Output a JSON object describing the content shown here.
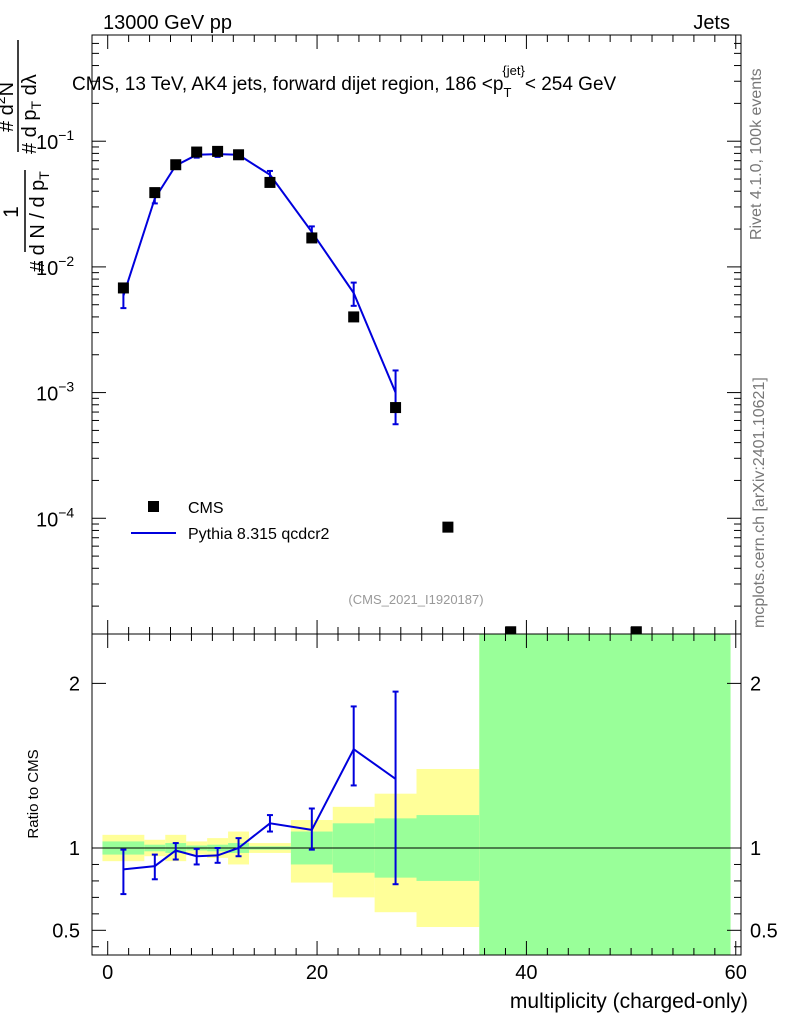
{
  "header": {
    "energy_label": "13000 GeV pp",
    "category_label": "Jets"
  },
  "side_labels": {
    "rivet": "Rivet 4.1.0,  100k events",
    "mcplots": "mcplots.cern.ch [arXiv:2401.10621]"
  },
  "chart_data": [
    {
      "type": "scatter",
      "panel": "main",
      "title": {
        "prefix": "CMS, 13 TeV, AK4 jets, forward dijet region, 186 <p",
        "sub": "T",
        "sup": "{jet}",
        "suffix": "< 254 GeV"
      },
      "ylabel": {
        "numerator": "1",
        "denominator": "# d N / d p",
        "denominator_sub": "T",
        "numerator2": "# d",
        "numerator2_sup": "2",
        "numerator2_tail": "N",
        "denominator2": "# d p",
        "denominator2_sub": "T",
        "denominator2_tail": " dλ"
      },
      "yscale": "log",
      "ylim": [
        1.2e-05,
        0.7
      ],
      "xlim": [
        -1.5,
        60.5
      ],
      "ytick_labels": [
        {
          "value": 0.1,
          "base": "10",
          "exp": "−1"
        },
        {
          "value": 0.01,
          "base": "10",
          "exp": "−2"
        },
        {
          "value": 0.001,
          "base": "10",
          "exp": "−3"
        },
        {
          "value": 0.0001,
          "base": "10",
          "exp": "−4"
        }
      ],
      "analysis_tag": "(CMS_2021_I1920187)",
      "legend": [
        {
          "name": "CMS",
          "marker": "square",
          "color": "#000000"
        },
        {
          "name": "Pythia 8.315 qcdcr2",
          "marker": "line",
          "color": "#0000dd"
        }
      ],
      "series": [
        {
          "name": "CMS",
          "x": [
            1.5,
            4.5,
            6.5,
            8.5,
            10.5,
            12.5,
            15.5,
            19.5,
            23.5,
            27.5,
            32.5,
            38.5,
            50.5
          ],
          "y": [
            0.0068,
            0.039,
            0.065,
            0.082,
            0.083,
            0.078,
            0.047,
            0.017,
            0.004,
            0.00076,
            8.5e-05,
            1.25e-05,
            1.25e-05
          ]
        },
        {
          "name": "Pythia 8.315 qcdcr2",
          "x": [
            1.5,
            4.5,
            6.5,
            8.5,
            10.5,
            12.5,
            15.5,
            19.5,
            23.5,
            27.5
          ],
          "y": [
            0.0059,
            0.035,
            0.064,
            0.078,
            0.079,
            0.078,
            0.054,
            0.019,
            0.0062,
            0.001
          ],
          "yerr_low": [
            0.0047,
            0.032,
            0.062,
            0.074,
            0.075,
            0.075,
            0.051,
            0.017,
            0.0049,
            0.00056
          ],
          "yerr_high": [
            0.0071,
            0.038,
            0.066,
            0.082,
            0.083,
            0.081,
            0.058,
            0.021,
            0.0075,
            0.0015
          ]
        }
      ]
    },
    {
      "type": "line",
      "panel": "ratio",
      "ylabel": "Ratio to CMS",
      "xlabel": "multiplicity (charged-only)",
      "ylim": [
        0.35,
        2.3
      ],
      "xlim": [
        -1.5,
        60.5
      ],
      "x_tick_labels": [
        {
          "value": 0,
          "label": "0"
        },
        {
          "value": 20,
          "label": "20"
        },
        {
          "value": 40,
          "label": "40"
        },
        {
          "value": 60,
          "label": "60"
        }
      ],
      "y_tick_labels": [
        {
          "value": 0.5,
          "label": "0.5"
        },
        {
          "value": 1,
          "label": "1"
        },
        {
          "value": 2,
          "label": "2"
        }
      ],
      "bands": [
        {
          "x0": -0.5,
          "x1": 3.5,
          "yellow": [
            0.92,
            1.08
          ],
          "green": [
            0.96,
            1.04
          ]
        },
        {
          "x0": 3.5,
          "x1": 5.5,
          "yellow": [
            0.95,
            1.05
          ],
          "green": [
            0.98,
            1.02
          ]
        },
        {
          "x0": 5.5,
          "x1": 7.5,
          "yellow": [
            0.92,
            1.08
          ],
          "green": [
            0.97,
            1.03
          ]
        },
        {
          "x0": 7.5,
          "x1": 9.5,
          "yellow": [
            0.96,
            1.04
          ],
          "green": [
            0.985,
            1.015
          ]
        },
        {
          "x0": 9.5,
          "x1": 11.5,
          "yellow": [
            0.94,
            1.06
          ],
          "green": [
            0.98,
            1.02
          ]
        },
        {
          "x0": 11.5,
          "x1": 13.5,
          "yellow": [
            0.9,
            1.1
          ],
          "green": [
            0.97,
            1.03
          ]
        },
        {
          "x0": 13.5,
          "x1": 17.5,
          "yellow": [
            0.97,
            1.03
          ],
          "green": [
            0.99,
            1.01
          ]
        },
        {
          "x0": 17.5,
          "x1": 21.5,
          "yellow": [
            0.79,
            1.17
          ],
          "green": [
            0.9,
            1.1
          ]
        },
        {
          "x0": 21.5,
          "x1": 25.5,
          "yellow": [
            0.7,
            1.25
          ],
          "green": [
            0.85,
            1.15
          ]
        },
        {
          "x0": 25.5,
          "x1": 29.5,
          "yellow": [
            0.61,
            1.33
          ],
          "green": [
            0.82,
            1.18
          ]
        },
        {
          "x0": 29.5,
          "x1": 35.5,
          "yellow": [
            0.52,
            1.48
          ],
          "green": [
            0.8,
            1.2
          ]
        },
        {
          "x0": 35.5,
          "x1": 59.5,
          "yellow": [
            0.35,
            2.3
          ],
          "green": [
            0.35,
            2.3
          ]
        }
      ],
      "series": [
        {
          "name": "Pythia 8.315 qcdcr2",
          "x": [
            1.5,
            4.5,
            6.5,
            8.5,
            10.5,
            12.5,
            15.5,
            19.5,
            23.5,
            27.5
          ],
          "y": [
            0.87,
            0.89,
            0.985,
            0.95,
            0.955,
            1.0,
            1.15,
            1.11,
            1.6,
            1.42
          ],
          "yerr_low": [
            0.72,
            0.81,
            0.93,
            0.9,
            0.91,
            0.95,
            1.1,
            0.99,
            1.38,
            0.78
          ],
          "yerr_high": [
            0.99,
            0.96,
            1.03,
            0.995,
            1.0,
            1.06,
            1.2,
            1.24,
            1.86,
            1.95
          ]
        }
      ]
    }
  ]
}
